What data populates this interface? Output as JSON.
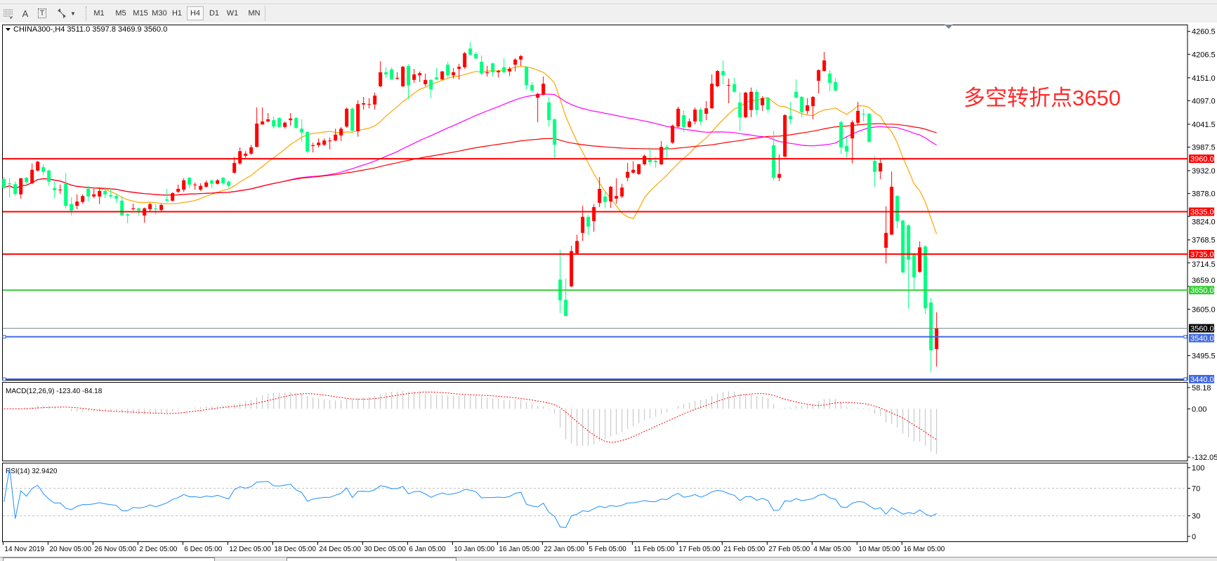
{
  "toolbar": {
    "icons": [
      "period-separator-icon",
      "text-label-icon",
      "text-box-icon",
      "arrows-icon"
    ],
    "icon_glyphs": {
      "text_label": "A",
      "text_box": "T"
    },
    "timeframes": [
      "M1",
      "M5",
      "M15",
      "M30",
      "H1",
      "H4",
      "D1",
      "W1",
      "MN"
    ],
    "active_timeframe": "H4"
  },
  "chart": {
    "header": "CHINA300-,H4  3511.0 3597.8 3469.9 3560.0",
    "annotation": "多空转折点3650",
    "annotation_color": "#ff2a2a",
    "price_ticks": [
      "4260.5",
      "4206.5",
      "4151.0",
      "4097.0",
      "4041.5",
      "3987.5",
      "3932.0",
      "3878.0",
      "3824.0",
      "3768.5",
      "3714.5",
      "3659.0",
      "3605.0",
      "3495.5"
    ],
    "levels": [
      {
        "price": 3960,
        "label": "3960.0",
        "color": "#ff0000"
      },
      {
        "price": 3835,
        "label": "3835.0",
        "color": "#ff0000"
      },
      {
        "price": 3735,
        "label": "3735.0",
        "color": "#ff0000"
      },
      {
        "price": 3650,
        "label": "3650.0",
        "color": "#32cd32"
      },
      {
        "price": 3560,
        "label": "3560.0",
        "color": "#000000",
        "line_color": "#808a96"
      },
      {
        "price": 3540,
        "label": "3540.0",
        "color": "#4169e1"
      },
      {
        "price": 3440,
        "label": "3440.0",
        "color": "#4169e1"
      }
    ],
    "date_labels": [
      "14 Nov 2019",
      "20 Nov 05:00",
      "26 Nov 05:00",
      "2 Dec 05:00",
      "6 Dec 05:00",
      "12 Dec 05:00",
      "18 Dec 05:00",
      "24 Dec 05:00",
      "30 Dec 05:00",
      "6 Jan 05:00",
      "10 Jan 05:00",
      "16 Jan 05:00",
      "22 Jan 05:00",
      "5 Feb 05:00",
      "11 Feb 05:00",
      "17 Feb 05:00",
      "21 Feb 05:00",
      "27 Feb 05:00",
      "4 Mar 05:00",
      "10 Mar 05:00",
      "16 Mar 05:00"
    ],
    "colors": {
      "bull": "#ff0000",
      "bear": "#00ff7f",
      "ma_fast": "#ffa500",
      "ma_mid": "#ff00ff",
      "ma_slow": "#ff0000"
    }
  },
  "macd": {
    "label": "MACD(12,26,9) -123.40 -84.18",
    "ticks": [
      "58.18",
      "0.00",
      "-132.05"
    ],
    "range": [
      -132.05,
      58.18
    ]
  },
  "rsi": {
    "label": "RSI(14) 32.9420",
    "ticks": [
      "100",
      "70",
      "30",
      "0"
    ],
    "levels": [
      70,
      30
    ]
  },
  "chart_data": {
    "type": "candlestick",
    "symbol": "CHINA300-",
    "timeframe": "H4",
    "ylim": [
      3440,
      4260.5
    ],
    "ohlc": [
      [
        3912,
        3917,
        3887,
        3892
      ],
      [
        3902,
        3914,
        3869,
        3900
      ],
      [
        3900,
        3907,
        3872,
        3877
      ],
      [
        3876,
        3914,
        3866,
        3914
      ],
      [
        3915,
        3917,
        3900,
        3905
      ],
      [
        3902,
        3949,
        3900,
        3934
      ],
      [
        3932,
        3955,
        3930,
        3953
      ],
      [
        3940,
        3947,
        3922,
        3929
      ],
      [
        3932,
        3935,
        3896,
        3906
      ],
      [
        3891,
        3906,
        3867,
        3886
      ],
      [
        3886,
        3899,
        3877,
        3887
      ],
      [
        3901,
        3927,
        3843,
        3849
      ],
      [
        3853,
        3869,
        3826,
        3838
      ],
      [
        3849,
        3876,
        3841,
        3859
      ],
      [
        3858,
        3876,
        3854,
        3872
      ],
      [
        3889,
        3896,
        3859,
        3871
      ],
      [
        3871,
        3889,
        3867,
        3876
      ],
      [
        3871,
        3892,
        3853,
        3884
      ],
      [
        3884,
        3892,
        3867,
        3876
      ],
      [
        3874,
        3891,
        3867,
        3871
      ],
      [
        3872,
        3877,
        3856,
        3866
      ],
      [
        3861,
        3871,
        3826,
        3826
      ],
      [
        3829,
        3831,
        3808,
        3826
      ],
      [
        3841,
        3854,
        3838,
        3843
      ],
      [
        3843,
        3845,
        3826,
        3838
      ],
      [
        3826,
        3845,
        3809,
        3843
      ],
      [
        3841,
        3856,
        3834,
        3853
      ],
      [
        3843,
        3853,
        3828,
        3842
      ],
      [
        3839,
        3854,
        3836,
        3851
      ],
      [
        3864,
        3889,
        3860,
        3861
      ],
      [
        3861,
        3881,
        3859,
        3879
      ],
      [
        3882,
        3899,
        3879,
        3889
      ],
      [
        3887,
        3914,
        3882,
        3909
      ],
      [
        3915,
        3917,
        3891,
        3899
      ],
      [
        3898,
        3904,
        3887,
        3899
      ],
      [
        3887,
        3902,
        3884,
        3896
      ],
      [
        3894,
        3909,
        3892,
        3904
      ],
      [
        3909,
        3911,
        3891,
        3901
      ],
      [
        3901,
        3912,
        3899,
        3909
      ],
      [
        3915,
        3917,
        3899,
        3902
      ],
      [
        3906,
        3909,
        3891,
        3896
      ],
      [
        3927,
        3964,
        3925,
        3950
      ],
      [
        3949,
        3987,
        3946,
        3978
      ],
      [
        3967,
        3978,
        3962,
        3972
      ],
      [
        3972,
        3993,
        3969,
        3987
      ],
      [
        3988,
        4081,
        3987,
        4043
      ],
      [
        4041,
        4081,
        4040,
        4048
      ],
      [
        4048,
        4068,
        4046,
        4053
      ],
      [
        4051,
        4060,
        4031,
        4036
      ],
      [
        4056,
        4058,
        4033,
        4035
      ],
      [
        4035,
        4048,
        4031,
        4045
      ],
      [
        4051,
        4068,
        4038,
        4055
      ],
      [
        4056,
        4058,
        4031,
        4033
      ],
      [
        4031,
        4053,
        4000,
        4022
      ],
      [
        4023,
        4025,
        3973,
        3977
      ],
      [
        3990,
        3998,
        3975,
        3992
      ],
      [
        3992,
        4008,
        3987,
        3998
      ],
      [
        3993,
        4008,
        3990,
        4003
      ],
      [
        4002,
        4010,
        3982,
        4003
      ],
      [
        4003,
        4031,
        4001,
        4017
      ],
      [
        4015,
        4035,
        4002,
        4031
      ],
      [
        4036,
        4081,
        4033,
        4078
      ],
      [
        4078,
        4081,
        4023,
        4026
      ],
      [
        4025,
        4098,
        4012,
        4089
      ],
      [
        4088,
        4106,
        4076,
        4091
      ],
      [
        4088,
        4103,
        4079,
        4089
      ],
      [
        4088,
        4116,
        4076,
        4109
      ],
      [
        4131,
        4190,
        4129,
        4164
      ],
      [
        4164,
        4176,
        4151,
        4159
      ],
      [
        4171,
        4176,
        4146,
        4147
      ],
      [
        4149,
        4164,
        4146,
        4151
      ],
      [
        4131,
        4179,
        4129,
        4177
      ],
      [
        4179,
        4183,
        4101,
        4133
      ],
      [
        4146,
        4172,
        4139,
        4159
      ],
      [
        4157,
        4166,
        4141,
        4162
      ],
      [
        4136,
        4161,
        4131,
        4146
      ],
      [
        4146,
        4148,
        4103,
        4124
      ],
      [
        4152,
        4174,
        4145,
        4147
      ],
      [
        4147,
        4167,
        4146,
        4166
      ],
      [
        4182,
        4189,
        4152,
        4157
      ],
      [
        4157,
        4174,
        4149,
        4164
      ],
      [
        4172,
        4184,
        4147,
        4177
      ],
      [
        4176,
        4212,
        4172,
        4209
      ],
      [
        4220,
        4235,
        4204,
        4205
      ],
      [
        4207,
        4212,
        4195,
        4197
      ],
      [
        4189,
        4204,
        4157,
        4161
      ],
      [
        4162,
        4179,
        4154,
        4164
      ],
      [
        4185,
        4187,
        4154,
        4164
      ],
      [
        4164,
        4169,
        4152,
        4167
      ],
      [
        4176,
        4197,
        4162,
        4164
      ],
      [
        4166,
        4177,
        4156,
        4172
      ],
      [
        4182,
        4197,
        4166,
        4194
      ],
      [
        4194,
        4205,
        4179,
        4202
      ],
      [
        4176,
        4179,
        4123,
        4134
      ],
      [
        4134,
        4141,
        4116,
        4121
      ],
      [
        4104,
        4116,
        4046,
        4113
      ],
      [
        4111,
        4154,
        4109,
        4137
      ],
      [
        4093,
        4106,
        4036,
        4051
      ],
      [
        4053,
        4055,
        3960,
        3993
      ],
      [
        3675,
        3745,
        3596,
        3626
      ],
      [
        3627,
        3677,
        3589,
        3589
      ],
      [
        3659,
        3755,
        3657,
        3742
      ],
      [
        3737,
        3781,
        3734,
        3766
      ],
      [
        3785,
        3849,
        3766,
        3823
      ],
      [
        3823,
        3828,
        3780,
        3800
      ],
      [
        3813,
        3853,
        3788,
        3846
      ],
      [
        3856,
        3917,
        3846,
        3889
      ],
      [
        3871,
        3882,
        3843,
        3858
      ],
      [
        3859,
        3896,
        3844,
        3894
      ],
      [
        3866,
        3914,
        3854,
        3872
      ],
      [
        3871,
        3901,
        3867,
        3892
      ],
      [
        3915,
        3950,
        3907,
        3929
      ],
      [
        3927,
        3954,
        3925,
        3934
      ],
      [
        3924,
        3948,
        3922,
        3947
      ],
      [
        3947,
        3970,
        3944,
        3967
      ],
      [
        3959,
        3987,
        3945,
        3952
      ],
      [
        3955,
        3964,
        3939,
        3952
      ],
      [
        3947,
        4002,
        3945,
        3988
      ],
      [
        3988,
        3993,
        3957,
        3982
      ],
      [
        3998,
        4041,
        3995,
        4038
      ],
      [
        4036,
        4083,
        4033,
        4078
      ],
      [
        4063,
        4074,
        4023,
        4035
      ],
      [
        4035,
        4055,
        4033,
        4048
      ],
      [
        4048,
        4081,
        4041,
        4076
      ],
      [
        4076,
        4081,
        4040,
        4048
      ],
      [
        4066,
        4096,
        4051,
        4079
      ],
      [
        4079,
        4159,
        4078,
        4137
      ],
      [
        4131,
        4169,
        4129,
        4167
      ],
      [
        4167,
        4192,
        4136,
        4157
      ],
      [
        4133,
        4149,
        4091,
        4134
      ],
      [
        4136,
        4151,
        4116,
        4118
      ],
      [
        4093,
        4116,
        4025,
        4058
      ],
      [
        4058,
        4118,
        4056,
        4116
      ],
      [
        4075,
        4128,
        4058,
        4118
      ],
      [
        4118,
        4124,
        4063,
        4075
      ],
      [
        4086,
        4108,
        4073,
        4103
      ],
      [
        4103,
        4104,
        4068,
        4076
      ],
      [
        3992,
        4026,
        3909,
        3915
      ],
      [
        3915,
        3970,
        3907,
        3924
      ],
      [
        3965,
        4065,
        3964,
        4063
      ],
      [
        4061,
        4094,
        4041,
        4053
      ],
      [
        4118,
        4147,
        4103,
        4104
      ],
      [
        4106,
        4108,
        4058,
        4070
      ],
      [
        4073,
        4103,
        4065,
        4086
      ],
      [
        4084,
        4108,
        4053,
        4106
      ],
      [
        4144,
        4171,
        4114,
        4169
      ],
      [
        4167,
        4212,
        4166,
        4192
      ],
      [
        4161,
        4169,
        4119,
        4139
      ],
      [
        4141,
        4151,
        4118,
        4121
      ],
      [
        4046,
        4050,
        3972,
        3987
      ],
      [
        3990,
        4010,
        3962,
        3977
      ],
      [
        4008,
        4051,
        3949,
        4046
      ],
      [
        4045,
        4094,
        4041,
        4073
      ],
      [
        4066,
        4078,
        4048,
        4065
      ],
      [
        4066,
        4068,
        3998,
        4000
      ],
      [
        3955,
        3967,
        3894,
        3929
      ],
      [
        3930,
        3960,
        3912,
        3950
      ],
      [
        3750,
        3848,
        3713,
        3785
      ],
      [
        3781,
        3930,
        3780,
        3894
      ],
      [
        3872,
        3874,
        3796,
        3813
      ],
      [
        3814,
        3816,
        3689,
        3692
      ],
      [
        3803,
        3805,
        3606,
        3722
      ],
      [
        3735,
        3738,
        3652,
        3680
      ],
      [
        3693,
        3765,
        3691,
        3751
      ],
      [
        3753,
        3756,
        3594,
        3607
      ],
      [
        3621,
        3632,
        3457,
        3508
      ],
      [
        3511,
        3597.8,
        3469.9,
        3560
      ]
    ]
  }
}
